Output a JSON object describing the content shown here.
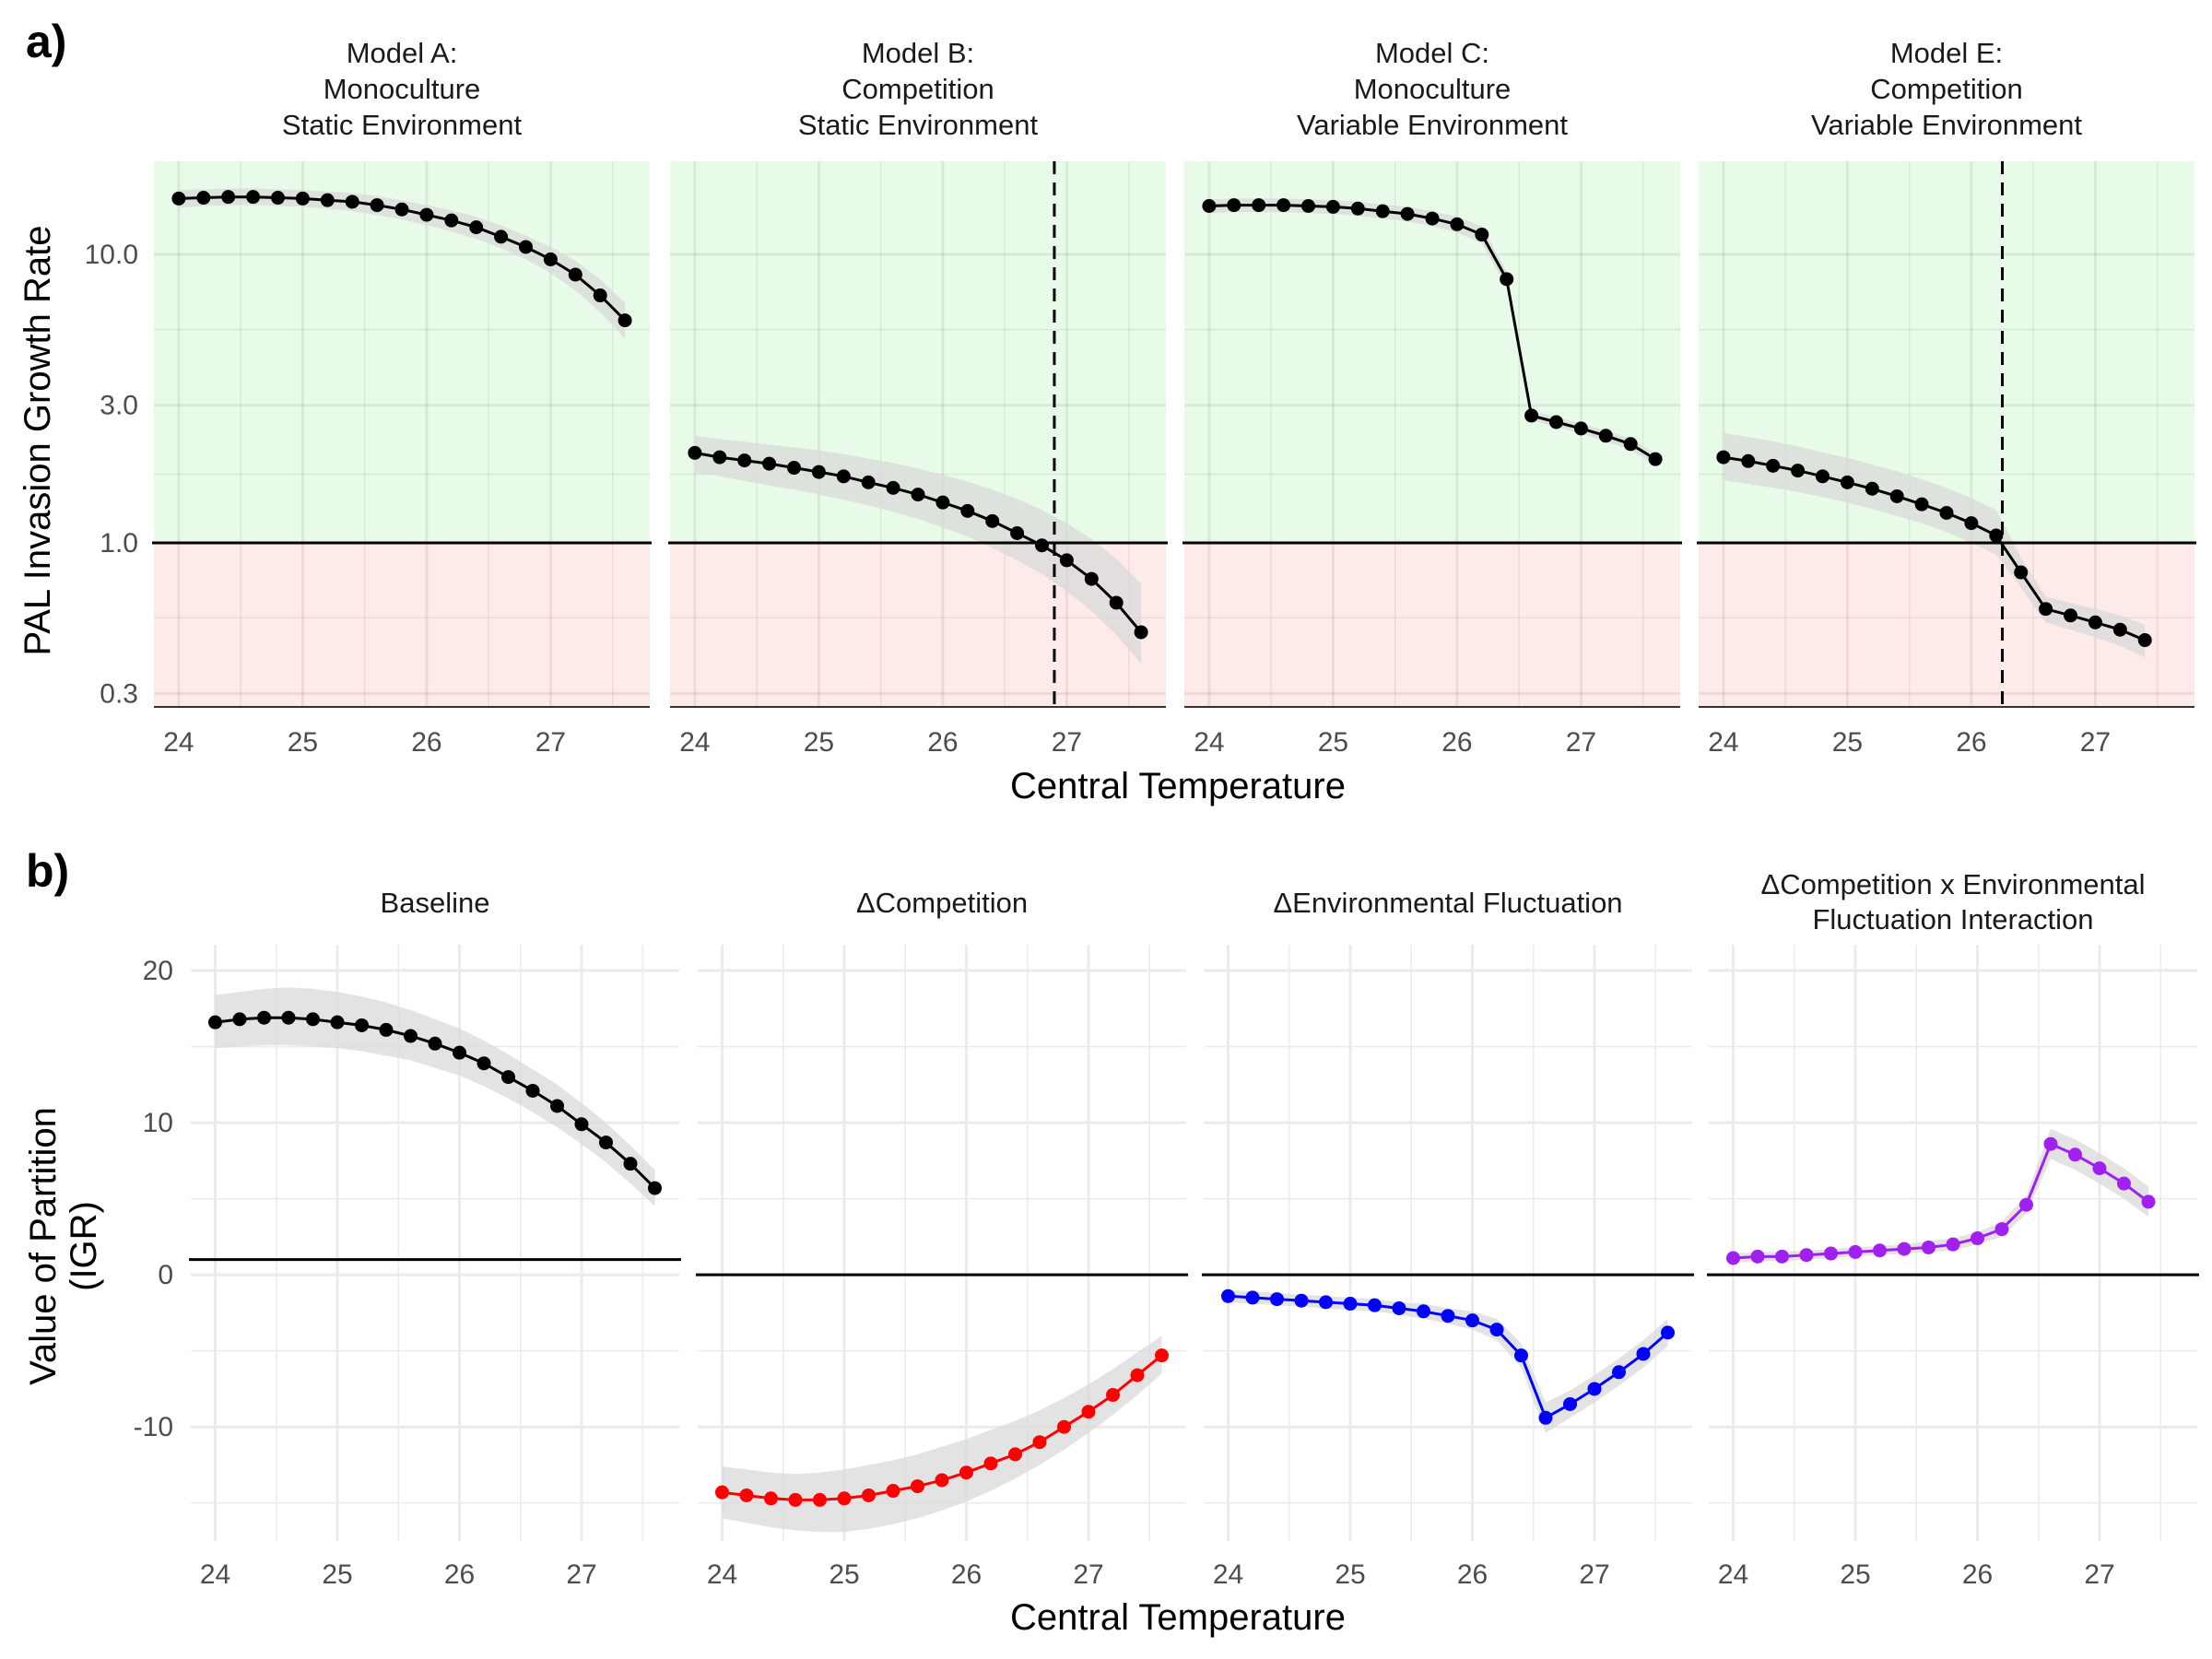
{
  "colors": {
    "positive_band": "#e8fbe8",
    "negative_band": "#ffeaea",
    "ribbon": "#d9d9d9",
    "baseline": "#000000",
    "competition": "#ff0000",
    "fluctuation": "#0000ff",
    "interaction": "#a020f0",
    "gridline": "#ebebeb"
  },
  "chart_data": [
    {
      "panel_tag": "a)",
      "type": "line",
      "xlabel": "Central Temperature",
      "ylabel": "PAL Invasion Growth Rate",
      "y_scale": "log10",
      "ylim": [
        0.27,
        21
      ],
      "xlim": [
        23.8,
        27.8
      ],
      "x_ticks": [
        24,
        25,
        26,
        27
      ],
      "y_ticks": [
        0.3,
        1.0,
        3.0,
        10.0
      ],
      "y_tick_labels": [
        "0.3",
        "1.0",
        "3.0",
        "10.0"
      ],
      "reference_line": 1.0,
      "facets": [
        {
          "title": [
            "Model A:",
            "Monoculture",
            "Static Environment"
          ],
          "color": "#000000",
          "x": [
            24.0,
            24.2,
            24.4,
            24.6,
            24.8,
            25.0,
            25.2,
            25.4,
            25.6,
            25.8,
            26.0,
            26.2,
            26.4,
            26.6,
            26.8,
            27.0,
            27.2,
            27.4,
            27.6
          ],
          "y": [
            15.6,
            15.7,
            15.8,
            15.8,
            15.7,
            15.6,
            15.4,
            15.2,
            14.8,
            14.3,
            13.7,
            13.1,
            12.4,
            11.5,
            10.6,
            9.6,
            8.5,
            7.2,
            5.9
          ],
          "ribbon_low": [
            14.5,
            14.7,
            14.8,
            14.8,
            14.7,
            14.6,
            14.4,
            14.1,
            13.7,
            13.2,
            12.6,
            12.0,
            11.3,
            10.5,
            9.6,
            8.6,
            7.5,
            6.3,
            5.1
          ],
          "ribbon_high": [
            16.7,
            16.8,
            16.9,
            16.9,
            16.8,
            16.7,
            16.5,
            16.3,
            15.9,
            15.4,
            14.8,
            14.2,
            13.5,
            12.6,
            11.6,
            10.6,
            9.5,
            8.2,
            6.8
          ],
          "vline": null
        },
        {
          "title": [
            "Model B:",
            "Competition",
            "Static Environment"
          ],
          "color": "#000000",
          "x": [
            24.0,
            24.2,
            24.4,
            24.6,
            24.8,
            25.0,
            25.2,
            25.4,
            25.6,
            25.8,
            26.0,
            26.2,
            26.4,
            26.6,
            26.8,
            27.0,
            27.2,
            27.4,
            27.6
          ],
          "y": [
            2.05,
            1.98,
            1.93,
            1.88,
            1.82,
            1.76,
            1.7,
            1.62,
            1.55,
            1.47,
            1.38,
            1.29,
            1.19,
            1.08,
            0.98,
            0.87,
            0.75,
            0.62,
            0.49
          ],
          "ribbon_low": [
            1.75,
            1.7,
            1.64,
            1.58,
            1.53,
            1.47,
            1.41,
            1.35,
            1.28,
            1.21,
            1.13,
            1.05,
            0.96,
            0.87,
            0.78,
            0.68,
            0.58,
            0.48,
            0.38
          ],
          "ribbon_high": [
            2.35,
            2.29,
            2.24,
            2.19,
            2.14,
            2.09,
            2.03,
            1.96,
            1.89,
            1.81,
            1.72,
            1.63,
            1.53,
            1.42,
            1.3,
            1.17,
            1.03,
            0.88,
            0.72
          ],
          "vline": 26.9
        },
        {
          "title": [
            "Model C:",
            "Monoculture",
            "Variable Environment"
          ],
          "color": "#000000",
          "x": [
            24.0,
            24.2,
            24.4,
            24.6,
            24.8,
            25.0,
            25.2,
            25.4,
            25.6,
            25.8,
            26.0,
            26.2,
            26.4,
            26.6,
            26.8,
            27.0,
            27.2,
            27.4,
            27.6
          ],
          "y": [
            14.7,
            14.8,
            14.8,
            14.8,
            14.7,
            14.6,
            14.4,
            14.1,
            13.8,
            13.3,
            12.7,
            11.7,
            8.2,
            2.76,
            2.62,
            2.49,
            2.35,
            2.2,
            1.95
          ],
          "ribbon_low": [
            13.9,
            14.0,
            14.0,
            14.0,
            13.9,
            13.8,
            13.6,
            13.3,
            13.0,
            12.5,
            11.9,
            10.9,
            7.7,
            2.66,
            2.52,
            2.39,
            2.25,
            2.1,
            1.86
          ],
          "ribbon_high": [
            15.5,
            15.6,
            15.6,
            15.6,
            15.5,
            15.4,
            15.2,
            14.9,
            14.6,
            14.1,
            13.5,
            12.5,
            8.7,
            2.86,
            2.72,
            2.59,
            2.45,
            2.3,
            2.04
          ],
          "vline": null
        },
        {
          "title": [
            "Model E:",
            "Competition",
            "Variable Environment"
          ],
          "color": "#000000",
          "x": [
            24.0,
            24.2,
            24.4,
            24.6,
            24.8,
            25.0,
            25.2,
            25.4,
            25.6,
            25.8,
            26.0,
            26.2,
            26.4,
            26.6,
            26.8,
            27.0,
            27.2,
            27.4
          ],
          "y": [
            1.98,
            1.92,
            1.85,
            1.78,
            1.7,
            1.62,
            1.54,
            1.45,
            1.36,
            1.27,
            1.17,
            1.06,
            0.79,
            0.59,
            0.56,
            0.53,
            0.5,
            0.46
          ],
          "ribbon_low": [
            1.65,
            1.6,
            1.55,
            1.5,
            1.44,
            1.38,
            1.31,
            1.24,
            1.17,
            1.09,
            1.0,
            0.91,
            0.7,
            0.53,
            0.5,
            0.47,
            0.44,
            0.4
          ],
          "ribbon_high": [
            2.4,
            2.33,
            2.25,
            2.16,
            2.06,
            1.97,
            1.87,
            1.77,
            1.66,
            1.55,
            1.43,
            1.3,
            0.89,
            0.65,
            0.62,
            0.59,
            0.56,
            0.52
          ],
          "vline": 26.25
        }
      ]
    },
    {
      "panel_tag": "b)",
      "type": "line",
      "xlabel": "Central Temperature",
      "ylabel": [
        "Value of Partition",
        "(IGR)"
      ],
      "y_scale": "linear",
      "ylim": [
        -17.5,
        21.7
      ],
      "xlim": [
        23.8,
        27.8
      ],
      "x_ticks": [
        24,
        25,
        26,
        27
      ],
      "y_ticks": [
        -10,
        0,
        10,
        20
      ],
      "y_tick_labels": [
        "-10",
        "0",
        "10",
        "20"
      ],
      "facets": [
        {
          "title": [
            "Baseline"
          ],
          "color": "#000000",
          "reference_line": 1.0,
          "x": [
            24.0,
            24.2,
            24.4,
            24.6,
            24.8,
            25.0,
            25.2,
            25.4,
            25.6,
            25.8,
            26.0,
            26.2,
            26.4,
            26.6,
            26.8,
            27.0,
            27.2,
            27.4,
            27.6
          ],
          "y": [
            16.6,
            16.8,
            16.9,
            16.9,
            16.8,
            16.6,
            16.4,
            16.1,
            15.7,
            15.2,
            14.6,
            13.9,
            13.0,
            12.1,
            11.1,
            9.9,
            8.7,
            7.3,
            5.7
          ],
          "ribbon_low": [
            14.9,
            15.0,
            15.1,
            15.1,
            15.0,
            14.9,
            14.7,
            14.4,
            14.1,
            13.6,
            13.1,
            12.4,
            11.6,
            10.7,
            9.7,
            8.6,
            7.4,
            6.0,
            4.5
          ],
          "ribbon_high": [
            18.4,
            18.6,
            18.8,
            18.9,
            18.8,
            18.6,
            18.3,
            17.9,
            17.4,
            16.8,
            16.2,
            15.4,
            14.5,
            13.5,
            12.5,
            11.3,
            10.0,
            8.5,
            6.9
          ]
        },
        {
          "title": [
            "ΔCompetition"
          ],
          "color": "#ff0000",
          "reference_line": 0,
          "x": [
            24.0,
            24.2,
            24.4,
            24.6,
            24.8,
            25.0,
            25.2,
            25.4,
            25.6,
            25.8,
            26.0,
            26.2,
            26.4,
            26.6,
            26.8,
            27.0,
            27.2,
            27.4,
            27.6
          ],
          "y": [
            -14.3,
            -14.5,
            -14.7,
            -14.8,
            -14.8,
            -14.7,
            -14.5,
            -14.2,
            -13.9,
            -13.5,
            -13.0,
            -12.4,
            -11.8,
            -11.0,
            -10.0,
            -9.0,
            -7.9,
            -6.6,
            -5.3
          ],
          "ribbon_low": [
            -16.0,
            -16.3,
            -16.6,
            -16.8,
            -16.9,
            -16.9,
            -16.7,
            -16.4,
            -16.0,
            -15.5,
            -14.9,
            -14.2,
            -13.4,
            -12.5,
            -11.5,
            -10.4,
            -9.2,
            -7.9,
            -6.5
          ],
          "ribbon_high": [
            -12.6,
            -12.8,
            -13.0,
            -13.1,
            -13.0,
            -12.8,
            -12.5,
            -12.2,
            -11.8,
            -11.3,
            -10.8,
            -10.2,
            -9.6,
            -8.9,
            -8.1,
            -7.2,
            -6.2,
            -5.1,
            -4.0
          ]
        },
        {
          "title": [
            "ΔEnvironmental Fluctuation"
          ],
          "color": "#0000ff",
          "reference_line": 0,
          "x": [
            24.0,
            24.2,
            24.4,
            24.6,
            24.8,
            25.0,
            25.2,
            25.4,
            25.6,
            25.8,
            26.0,
            26.2,
            26.4,
            26.6,
            26.8,
            27.0,
            27.2,
            27.4,
            27.6
          ],
          "y": [
            -1.4,
            -1.5,
            -1.6,
            -1.7,
            -1.8,
            -1.9,
            -2.0,
            -2.2,
            -2.4,
            -2.7,
            -3.0,
            -3.6,
            -5.3,
            -9.4,
            -8.5,
            -7.5,
            -6.4,
            -5.2,
            -3.8
          ],
          "ribbon_low": [
            -1.8,
            -1.9,
            -2.0,
            -2.1,
            -2.2,
            -2.3,
            -2.4,
            -2.6,
            -2.9,
            -3.2,
            -3.6,
            -4.3,
            -6.1,
            -10.4,
            -9.4,
            -8.4,
            -7.3,
            -6.1,
            -4.7
          ],
          "ribbon_high": [
            -1.0,
            -1.1,
            -1.2,
            -1.3,
            -1.4,
            -1.5,
            -1.6,
            -1.8,
            -1.9,
            -2.2,
            -2.4,
            -2.9,
            -4.5,
            -8.4,
            -7.6,
            -6.6,
            -5.5,
            -4.3,
            -2.9
          ]
        },
        {
          "title": [
            "ΔCompetition x Environmental",
            "Fluctuation Interaction"
          ],
          "color": "#a020f0",
          "reference_line": 0,
          "x": [
            24.0,
            24.2,
            24.4,
            24.6,
            24.8,
            25.0,
            25.2,
            25.4,
            25.6,
            25.8,
            26.0,
            26.2,
            26.4,
            26.6,
            26.8,
            27.0,
            27.2,
            27.4
          ],
          "y": [
            1.1,
            1.2,
            1.2,
            1.3,
            1.4,
            1.5,
            1.6,
            1.7,
            1.8,
            2.0,
            2.4,
            3.0,
            4.6,
            8.6,
            7.9,
            7.0,
            6.0,
            4.8
          ],
          "ribbon_low": [
            0.8,
            0.9,
            0.9,
            1.0,
            1.1,
            1.2,
            1.3,
            1.4,
            1.5,
            1.6,
            2.0,
            2.5,
            4.0,
            7.6,
            6.9,
            6.0,
            5.0,
            3.8
          ],
          "ribbon_high": [
            1.4,
            1.5,
            1.5,
            1.6,
            1.7,
            1.8,
            1.9,
            2.0,
            2.2,
            2.4,
            2.8,
            3.5,
            5.2,
            9.6,
            8.9,
            8.0,
            7.0,
            5.8
          ]
        }
      ]
    }
  ]
}
